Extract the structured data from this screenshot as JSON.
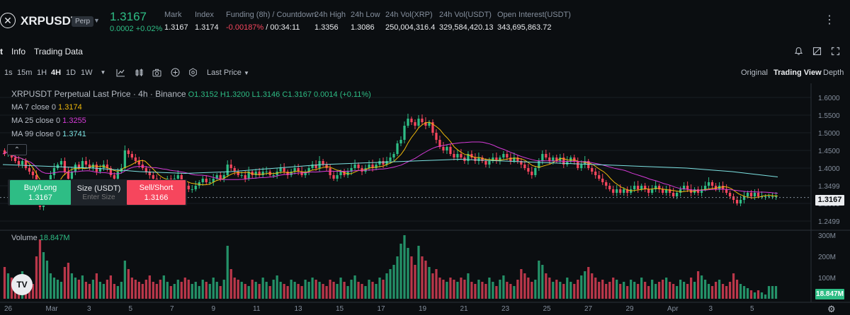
{
  "header": {
    "symbol": "XRPUSDT",
    "badge": "Perp",
    "last_price": "1.3167",
    "change": "0.0002 +0.02%",
    "stats": [
      {
        "label": "Mark",
        "value": "1.3167"
      },
      {
        "label": "Index",
        "value": "1.3174"
      },
      {
        "label": "Funding (8h) / Countdown",
        "value_neg": "-0.00187%",
        "value": "/ 00:34:11"
      },
      {
        "label": "24h High",
        "value": "1.3356"
      },
      {
        "label": "24h Low",
        "value": "1.3086"
      },
      {
        "label": "24h Vol(XRP)",
        "value": "250,004,316.4"
      },
      {
        "label": "24h Vol(USDT)",
        "value": "329,584,420.13"
      },
      {
        "label": "Open Interest(USDT)",
        "value": "343,695,863.72"
      }
    ],
    "more": "⋮"
  },
  "tabs": [
    {
      "label": "t"
    },
    {
      "label": "Info"
    },
    {
      "label": "Trading Data"
    }
  ],
  "toolbar": {
    "timeframes": [
      "1s",
      "15m",
      "1H",
      "4H",
      "1D",
      "1W"
    ],
    "active_timeframe": "4H",
    "price_source": "Last Price",
    "views": [
      "Original",
      "Trading View",
      "Depth"
    ],
    "active_view": "Trading View"
  },
  "chart": {
    "title": "XRPUSDT Perpetual Last Price · 4h · Binance",
    "ohlc": "O1.3152 H1.3200 L1.3146 C1.3167 0.0014 (+0.11%)",
    "ma": [
      {
        "label": "MA 7 close 0",
        "value": "1.3174",
        "color": "#f0b90b"
      },
      {
        "label": "MA 25 close 0",
        "value": "1.3255",
        "color": "#d63bd8"
      },
      {
        "label": "MA 99 close 0",
        "value": "1.3741",
        "color": "#7de3e3"
      }
    ],
    "price_axis": [
      "1.6000",
      "1.5500",
      "1.5000",
      "1.4500",
      "1.4000",
      "1.3499",
      "1.2999",
      "1.2499"
    ],
    "current_price_tag": "1.3167",
    "volume_label": "Volume",
    "volume_value": "18.847M",
    "volume_axis": [
      "300M",
      "200M",
      "100M"
    ],
    "volume_tag": "18.847M",
    "date_axis": [
      "26",
      "Mar",
      "3",
      "5",
      "7",
      "9",
      "11",
      "13",
      "15",
      "17",
      "19",
      "21",
      "23",
      "25",
      "27",
      "29",
      "Apr",
      "3",
      "5"
    ],
    "colors": {
      "up": "#2ebd85",
      "down": "#f6465d"
    }
  },
  "order": {
    "buy_label": "Buy/Long",
    "buy_price": "1.3167",
    "size_label": "Size (USDT)",
    "size_placeholder": "Enter Size",
    "sell_label": "Sell/Short",
    "sell_price": "1.3166"
  },
  "chart_data": {
    "type": "candlestick",
    "title": "XRPUSDT Perpetual Last Price · 4h · Binance",
    "xlabel": "",
    "ylabel": "",
    "ylim": [
      1.23,
      1.62
    ],
    "closes": [
      1.44,
      1.45,
      1.43,
      1.42,
      1.41,
      1.42,
      1.4,
      1.39,
      1.38,
      1.33,
      1.29,
      1.31,
      1.34,
      1.38,
      1.4,
      1.41,
      1.42,
      1.39,
      1.37,
      1.39,
      1.41,
      1.4,
      1.42,
      1.41,
      1.4,
      1.41,
      1.39,
      1.4,
      1.41,
      1.4,
      1.38,
      1.37,
      1.39,
      1.4,
      1.45,
      1.44,
      1.43,
      1.42,
      1.41,
      1.4,
      1.39,
      1.38,
      1.37,
      1.36,
      1.35,
      1.36,
      1.37,
      1.36,
      1.37,
      1.38,
      1.36,
      1.35,
      1.34,
      1.34,
      1.35,
      1.36,
      1.37,
      1.36,
      1.36,
      1.37,
      1.38,
      1.37,
      1.38,
      1.41,
      1.4,
      1.39,
      1.38,
      1.38,
      1.37,
      1.39,
      1.38,
      1.39,
      1.38,
      1.39,
      1.39,
      1.38,
      1.38,
      1.39,
      1.4,
      1.39,
      1.38,
      1.39,
      1.4,
      1.39,
      1.38,
      1.39,
      1.4,
      1.41,
      1.4,
      1.42,
      1.41,
      1.4,
      1.38,
      1.37,
      1.38,
      1.39,
      1.38,
      1.39,
      1.4,
      1.41,
      1.4,
      1.39,
      1.4,
      1.41,
      1.4,
      1.41,
      1.42,
      1.41,
      1.42,
      1.43,
      1.44,
      1.47,
      1.48,
      1.52,
      1.54,
      1.53,
      1.52,
      1.54,
      1.53,
      1.52,
      1.53,
      1.5,
      1.48,
      1.46,
      1.45,
      1.46,
      1.44,
      1.43,
      1.44,
      1.43,
      1.42,
      1.44,
      1.43,
      1.42,
      1.43,
      1.42,
      1.41,
      1.42,
      1.43,
      1.42,
      1.43,
      1.44,
      1.43,
      1.42,
      1.43,
      1.42,
      1.41,
      1.4,
      1.39,
      1.38,
      1.4,
      1.42,
      1.44,
      1.43,
      1.42,
      1.43,
      1.42,
      1.43,
      1.41,
      1.42,
      1.43,
      1.42,
      1.4,
      1.41,
      1.42,
      1.4,
      1.39,
      1.38,
      1.37,
      1.36,
      1.35,
      1.34,
      1.33,
      1.34,
      1.33,
      1.34,
      1.33,
      1.34,
      1.35,
      1.34,
      1.35,
      1.34,
      1.33,
      1.34,
      1.35,
      1.34,
      1.33,
      1.34,
      1.33,
      1.32,
      1.33,
      1.34,
      1.35,
      1.34,
      1.33,
      1.34,
      1.33,
      1.34,
      1.35,
      1.36,
      1.35,
      1.34,
      1.35,
      1.34,
      1.33,
      1.32,
      1.31,
      1.3,
      1.31,
      1.32,
      1.33,
      1.32,
      1.33,
      1.32,
      1.32,
      1.32,
      1.32,
      1.32,
      1.32
    ],
    "volumes_million": [
      150,
      120,
      100,
      90,
      110,
      130,
      80,
      60,
      70,
      200,
      280,
      220,
      180,
      120,
      100,
      90,
      80,
      150,
      170,
      120,
      100,
      90,
      110,
      80,
      70,
      90,
      120,
      80,
      70,
      90,
      110,
      70,
      60,
      80,
      180,
      140,
      100,
      90,
      80,
      70,
      90,
      110,
      80,
      70,
      90,
      110,
      80,
      60,
      70,
      90,
      80,
      100,
      90,
      70,
      80,
      60,
      90,
      80,
      70,
      100,
      80,
      60,
      90,
      250,
      140,
      100,
      90,
      80,
      70,
      60,
      90,
      80,
      70,
      100,
      80,
      60,
      90,
      110,
      80,
      70,
      60,
      90,
      80,
      70,
      60,
      90,
      80,
      100,
      90,
      80,
      70,
      60,
      90,
      80,
      70,
      100,
      80,
      60,
      90,
      110,
      80,
      70,
      60,
      90,
      80,
      70,
      100,
      90,
      120,
      140,
      160,
      200,
      260,
      300,
      240,
      200,
      160,
      250,
      200,
      180,
      150,
      120,
      140,
      100,
      90,
      80,
      100,
      90,
      80,
      100,
      90,
      120,
      80,
      70,
      90,
      80,
      70,
      100,
      80,
      60,
      90,
      110,
      80,
      70,
      60,
      90,
      140,
      120,
      100,
      80,
      90,
      180,
      160,
      120,
      100,
      80,
      90,
      80,
      70,
      100,
      80,
      70,
      90,
      110,
      130,
      150,
      120,
      100,
      80,
      90,
      70,
      80,
      100,
      90,
      70,
      80,
      60,
      90,
      80,
      70,
      100,
      80,
      60,
      90,
      70,
      80,
      90,
      100,
      80,
      70,
      60,
      90,
      80,
      70,
      100,
      80,
      130,
      110,
      90,
      70,
      60,
      80,
      90,
      70,
      60,
      80,
      120,
      90,
      70,
      60,
      50,
      40,
      30,
      40,
      30,
      20
    ],
    "ma7": [
      1.43,
      1.44,
      1.43,
      1.42,
      1.41,
      1.4,
      1.39
    ],
    "ma25": [
      1.42,
      1.41,
      1.4,
      1.4,
      1.41,
      1.44,
      1.46,
      1.44,
      1.42,
      1.42,
      1.41,
      1.4,
      1.39,
      1.37,
      1.35,
      1.34,
      1.335,
      1.33
    ],
    "ma99": [
      1.41,
      1.405,
      1.4,
      1.39,
      1.385,
      1.39,
      1.4,
      1.41,
      1.415,
      1.42,
      1.425,
      1.42,
      1.415,
      1.41,
      1.405,
      1.4,
      1.39,
      1.375
    ]
  }
}
